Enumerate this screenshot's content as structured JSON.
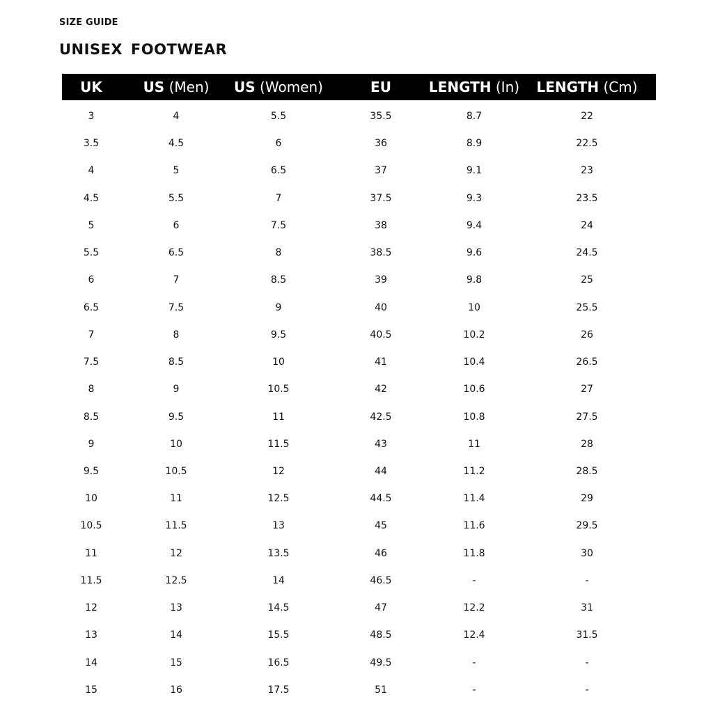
{
  "eyebrow": "SIZE GUIDE",
  "title": "UNISEX  FOOTWEAR",
  "table": {
    "headers": [
      {
        "bold": "UK",
        "light": ""
      },
      {
        "bold": "US",
        "light": " (Men)"
      },
      {
        "bold": "US",
        "light": " (Women)"
      },
      {
        "bold": "EU",
        "light": ""
      },
      {
        "bold": "LENGTH",
        "light": " (In)"
      },
      {
        "bold": "LENGTH",
        "light": " (Cm)"
      }
    ],
    "rows": [
      [
        "3",
        "4",
        "5.5",
        "35.5",
        "8.7",
        "22"
      ],
      [
        "3.5",
        "4.5",
        "6",
        "36",
        "8.9",
        "22.5"
      ],
      [
        "4",
        "5",
        "6.5",
        "37",
        "9.1",
        "23"
      ],
      [
        "4.5",
        "5.5",
        "7",
        "37.5",
        "9.3",
        "23.5"
      ],
      [
        "5",
        "6",
        "7.5",
        "38",
        "9.4",
        "24"
      ],
      [
        "5.5",
        "6.5",
        "8",
        "38.5",
        "9.6",
        "24.5"
      ],
      [
        "6",
        "7",
        "8.5",
        "39",
        "9.8",
        "25"
      ],
      [
        "6.5",
        "7.5",
        "9",
        "40",
        "10",
        "25.5"
      ],
      [
        "7",
        "8",
        "9.5",
        "40.5",
        "10.2",
        "26"
      ],
      [
        "7.5",
        "8.5",
        "10",
        "41",
        "10.4",
        "26.5"
      ],
      [
        "8",
        "9",
        "10.5",
        "42",
        "10.6",
        "27"
      ],
      [
        "8.5",
        "9.5",
        "11",
        "42.5",
        "10.8",
        "27.5"
      ],
      [
        "9",
        "10",
        "11.5",
        "43",
        "11",
        "28"
      ],
      [
        "9.5",
        "10.5",
        "12",
        "44",
        "11.2",
        "28.5"
      ],
      [
        "10",
        "11",
        "12.5",
        "44.5",
        "11.4",
        "29"
      ],
      [
        "10.5",
        "11.5",
        "13",
        "45",
        "11.6",
        "29.5"
      ],
      [
        "11",
        "12",
        "13.5",
        "46",
        "11.8",
        "30"
      ],
      [
        "11.5",
        "12.5",
        "14",
        "46.5",
        "-",
        "-"
      ],
      [
        "12",
        "13",
        "14.5",
        "47",
        "12.2",
        "31"
      ],
      [
        "13",
        "14",
        "15.5",
        "48.5",
        "12.4",
        "31.5"
      ],
      [
        "14",
        "15",
        "16.5",
        "49.5",
        "-",
        "-"
      ],
      [
        "15",
        "16",
        "17.5",
        "51",
        "-",
        "-"
      ]
    ]
  }
}
